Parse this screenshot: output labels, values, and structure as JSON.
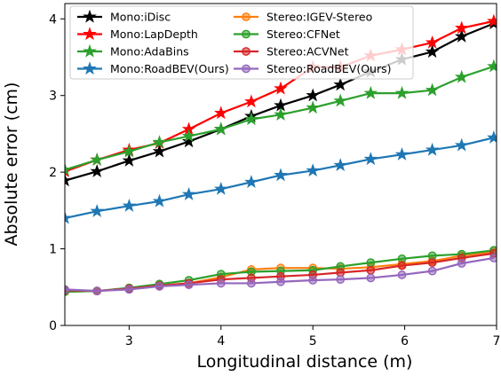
{
  "chart_data": {
    "type": "line",
    "title": "",
    "xlabel": "Longitudinal distance (m)",
    "ylabel": "Absolute error (cm)",
    "xlim": [
      2.3,
      7.0
    ],
    "ylim": [
      0,
      4.2
    ],
    "xticks": [
      3,
      4,
      5,
      6,
      7
    ],
    "yticks": [
      0,
      1,
      2,
      3,
      4
    ],
    "grid": false,
    "legend_placement": "top-left",
    "x": [
      2.3,
      2.65,
      3.0,
      3.33,
      3.65,
      4.0,
      4.33,
      4.65,
      5.0,
      5.3,
      5.63,
      5.97,
      6.3,
      6.62,
      6.97
    ],
    "series": [
      {
        "name": "Mono:iDisc",
        "color": "#000000",
        "marker": "star",
        "values": [
          1.89,
          2.01,
          2.15,
          2.27,
          2.4,
          2.56,
          2.73,
          2.87,
          3.0,
          3.14,
          3.31,
          3.47,
          3.57,
          3.77,
          3.94
        ]
      },
      {
        "name": "Mono:LapDepth",
        "color": "#ff0000",
        "marker": "star",
        "values": [
          2.01,
          2.16,
          2.29,
          2.38,
          2.56,
          2.77,
          2.92,
          3.09,
          3.37,
          3.37,
          3.52,
          3.6,
          3.69,
          3.88,
          3.97
        ]
      },
      {
        "name": "Mono:AdaBins",
        "color": "#2ca02c",
        "marker": "star",
        "values": [
          2.03,
          2.16,
          2.27,
          2.39,
          2.47,
          2.56,
          2.69,
          2.75,
          2.84,
          2.93,
          3.03,
          3.03,
          3.07,
          3.24,
          3.38
        ]
      },
      {
        "name": "Mono:RoadBEV(Ours)",
        "color": "#1f77b4",
        "marker": "star",
        "values": [
          1.4,
          1.49,
          1.56,
          1.62,
          1.71,
          1.78,
          1.87,
          1.96,
          2.02,
          2.09,
          2.17,
          2.23,
          2.29,
          2.35,
          2.45
        ]
      },
      {
        "name": "Stereo:IGEV-Stereo",
        "color": "#ff7f0e",
        "marker": "circle",
        "values": [
          0.44,
          0.45,
          0.48,
          0.52,
          0.55,
          0.63,
          0.73,
          0.75,
          0.75,
          0.74,
          0.76,
          0.8,
          0.84,
          0.91,
          0.96
        ]
      },
      {
        "name": "Stereo:CFNet",
        "color": "#2ca02c",
        "marker": "circle",
        "values": [
          0.44,
          0.45,
          0.49,
          0.54,
          0.59,
          0.67,
          0.7,
          0.71,
          0.72,
          0.77,
          0.82,
          0.87,
          0.91,
          0.93,
          0.98
        ]
      },
      {
        "name": "Stereo:ACVNet",
        "color": "#d62728",
        "marker": "circle",
        "values": [
          0.46,
          0.45,
          0.48,
          0.52,
          0.55,
          0.6,
          0.62,
          0.64,
          0.66,
          0.69,
          0.72,
          0.78,
          0.82,
          0.88,
          0.94
        ]
      },
      {
        "name": "Stereo:RoadBEV(Ours)",
        "color": "#9467bd",
        "marker": "circle",
        "values": [
          0.47,
          0.45,
          0.47,
          0.51,
          0.53,
          0.55,
          0.55,
          0.57,
          0.59,
          0.6,
          0.62,
          0.66,
          0.71,
          0.81,
          0.88
        ]
      }
    ]
  }
}
